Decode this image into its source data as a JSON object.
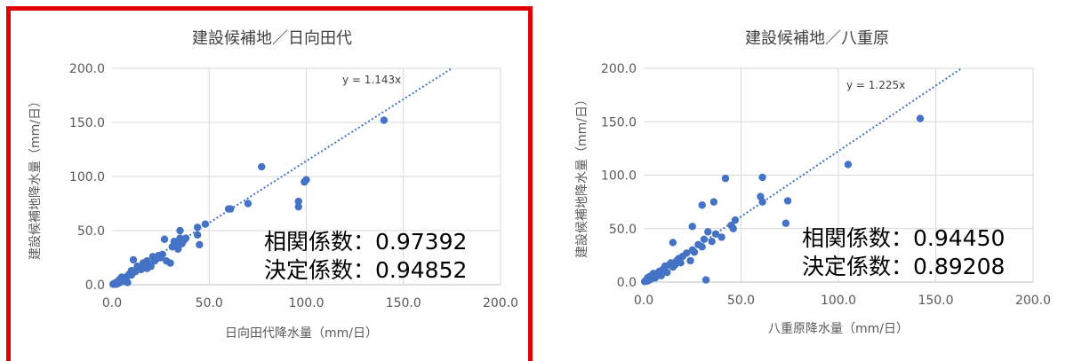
{
  "colors": {
    "marker": "#4472C4",
    "trend": "#4472C4",
    "grid": "#d9d9d9",
    "highlight": "#e00000"
  },
  "chart_data": [
    {
      "type": "scatter",
      "title": "建設候補地／日向田代",
      "xlabel": "日向田代降水量（mm/日）",
      "ylabel": "建設候補地降水量（mm/日）",
      "xlim": [
        0,
        200
      ],
      "ylim": [
        0,
        200
      ],
      "xticks": [
        "0.0",
        "50.0",
        "100.0",
        "150.0",
        "200.0"
      ],
      "yticks": [
        "0.0",
        "50.0",
        "100.0",
        "150.0",
        "200.0"
      ],
      "grid": true,
      "trendline": {
        "slope": 1.143,
        "label": "y = 1.143x"
      },
      "stats": {
        "corr": "相関係数：0.97392",
        "det": "決定係数：0.94852"
      },
      "highlighted": true,
      "points": [
        [
          0.5,
          0.5
        ],
        [
          1,
          1
        ],
        [
          1.5,
          0.5
        ],
        [
          2,
          2
        ],
        [
          2,
          0.5
        ],
        [
          3,
          1
        ],
        [
          3,
          3
        ],
        [
          4,
          2
        ],
        [
          4,
          5
        ],
        [
          5,
          4
        ],
        [
          5,
          7
        ],
        [
          6,
          3
        ],
        [
          6,
          6
        ],
        [
          7,
          5
        ],
        [
          8,
          8
        ],
        [
          8,
          2
        ],
        [
          9,
          10
        ],
        [
          10,
          9
        ],
        [
          10,
          13
        ],
        [
          11,
          23
        ],
        [
          12,
          12
        ],
        [
          13,
          17
        ],
        [
          14,
          16
        ],
        [
          15,
          14
        ],
        [
          16,
          20
        ],
        [
          17,
          18
        ],
        [
          18,
          15
        ],
        [
          18,
          22
        ],
        [
          19,
          19
        ],
        [
          20,
          17
        ],
        [
          21,
          26
        ],
        [
          22,
          22
        ],
        [
          23,
          24
        ],
        [
          24,
          27
        ],
        [
          25,
          25
        ],
        [
          26,
          28
        ],
        [
          27,
          42
        ],
        [
          28,
          22
        ],
        [
          30,
          20
        ],
        [
          31,
          35
        ],
        [
          32,
          40
        ],
        [
          33,
          37
        ],
        [
          34,
          33
        ],
        [
          35,
          43
        ],
        [
          35,
          50
        ],
        [
          36,
          38
        ],
        [
          37,
          41
        ],
        [
          38,
          43
        ],
        [
          44,
          46
        ],
        [
          44,
          53
        ],
        [
          45,
          37
        ],
        [
          48,
          56
        ],
        [
          60,
          70
        ],
        [
          61,
          70
        ],
        [
          70,
          75
        ],
        [
          77,
          109
        ],
        [
          96,
          72
        ],
        [
          96,
          77
        ],
        [
          99,
          95
        ],
        [
          100,
          97
        ],
        [
          140,
          152
        ]
      ]
    },
    {
      "type": "scatter",
      "title": "建設候補地／八重原",
      "xlabel": "八重原降水量（mm/日）",
      "ylabel": "建設候補地降水量（mm/日）",
      "xlim": [
        0,
        200
      ],
      "ylim": [
        0,
        200
      ],
      "xticks": [
        "0.0",
        "50.0",
        "100.0",
        "150.0",
        "200.0"
      ],
      "yticks": [
        "0.0",
        "50.0",
        "100.0",
        "150.0",
        "200.0"
      ],
      "grid": true,
      "trendline": {
        "slope": 1.225,
        "label": "y = 1.225x"
      },
      "stats": {
        "corr": "相関係数：0.94450",
        "det": "決定係数：0.89208"
      },
      "highlighted": false,
      "points": [
        [
          0.5,
          0.5
        ],
        [
          1,
          1
        ],
        [
          1.5,
          2
        ],
        [
          2,
          1
        ],
        [
          2,
          4
        ],
        [
          3,
          2
        ],
        [
          3,
          5
        ],
        [
          4,
          3
        ],
        [
          4,
          6
        ],
        [
          5,
          5
        ],
        [
          5,
          8
        ],
        [
          6,
          4
        ],
        [
          7,
          7
        ],
        [
          8,
          10
        ],
        [
          9,
          6
        ],
        [
          10,
          12
        ],
        [
          11,
          15
        ],
        [
          12,
          9
        ],
        [
          13,
          16
        ],
        [
          14,
          18
        ],
        [
          15,
          14
        ],
        [
          15,
          37
        ],
        [
          16,
          16
        ],
        [
          17,
          20
        ],
        [
          18,
          22
        ],
        [
          19,
          18
        ],
        [
          20,
          24
        ],
        [
          22,
          27
        ],
        [
          24,
          20
        ],
        [
          25,
          30
        ],
        [
          25,
          52
        ],
        [
          26,
          28
        ],
        [
          28,
          35
        ],
        [
          30,
          33
        ],
        [
          30,
          72
        ],
        [
          31,
          40
        ],
        [
          32,
          2
        ],
        [
          33,
          47
        ],
        [
          35,
          38
        ],
        [
          36,
          75
        ],
        [
          37,
          45
        ],
        [
          40,
          42
        ],
        [
          42,
          97
        ],
        [
          45,
          53
        ],
        [
          46,
          50
        ],
        [
          47,
          58
        ],
        [
          60,
          80
        ],
        [
          61,
          75
        ],
        [
          61,
          98
        ],
        [
          73,
          55
        ],
        [
          74,
          76
        ],
        [
          105,
          110
        ],
        [
          142,
          153
        ]
      ]
    }
  ]
}
